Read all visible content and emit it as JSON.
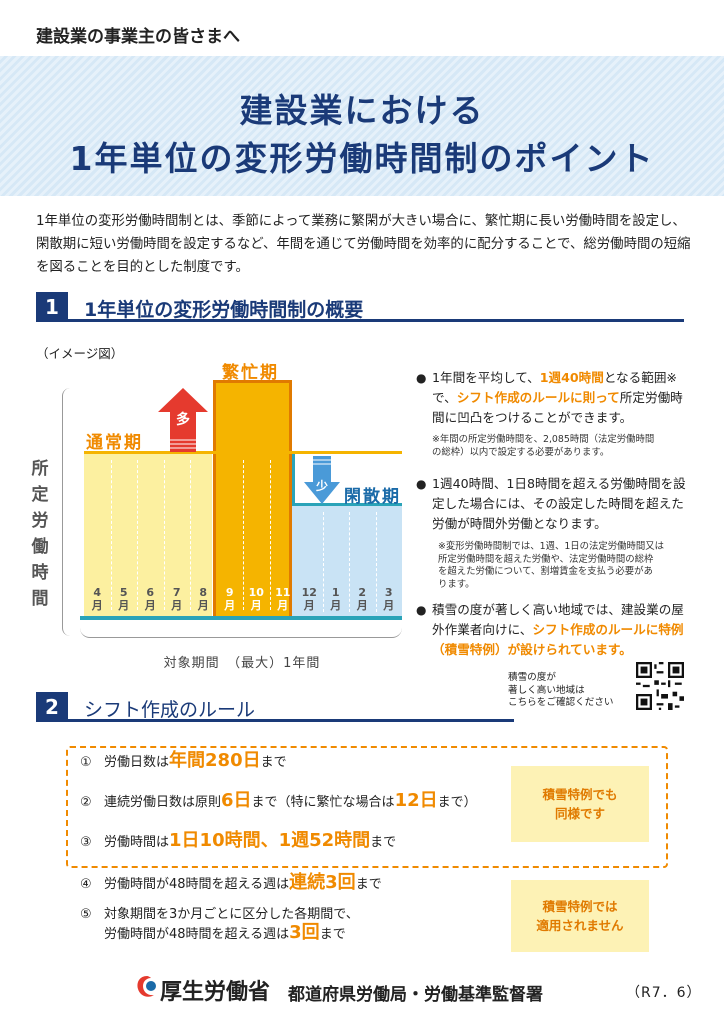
{
  "header": {
    "audience": "建設業の事業主の皆さまへ",
    "title_line1": "建設業における",
    "title_line2": "1年単位の変形労働時間制のポイント"
  },
  "intro": "1年単位の変形労働時間制とは、季節によって業務に繁閑が大きい場合に、繁忙期に長い労働時間を設定し、閑散期に短い労働時間を設定するなど、年間を通じて労働時間を効率的に配分することで、総労働時間の短縮を図ることを目的とした制度です。",
  "section1": {
    "number": "1",
    "title": "1年単位の変形労働時間制の概要",
    "image_label": "（イメージ図）",
    "chart": {
      "y_axis_label": "所定労働時間",
      "normal_label": "通常期",
      "busy_label": "繁忙期",
      "idle_label": "閑散期",
      "more_label": "多",
      "less_label": "少",
      "months": [
        "4",
        "5",
        "6",
        "7",
        "8",
        "9",
        "10",
        "11",
        "12",
        "1",
        "2",
        "3"
      ],
      "month_unit": "月",
      "period_label": "対象期間　（最大）1年間"
    },
    "bullets": [
      {
        "pre": "1年間を平均して、",
        "h1": "1週40時間",
        "mid": "となる範囲※で、",
        "h2": "シフト作成のルールに則って",
        "post": "所定労働時間に凹凸をつけることができます。",
        "note_line1": "※年間の所定労働時間を、2,085時間（法定労働時間",
        "note_line2": "の総枠）以内で設定する必要があります。"
      },
      {
        "text": "1週40時間、1日8時間を超える労働時間を設定した場合には、その設定した時間を超えた労働が時間外労働となります。",
        "note_line1": "※変形労働時間制では、1週、1日の法定労働時間又は",
        "note_line2": "所定労働時間を超えた労働や、法定労働時間の総枠",
        "note_line3": "を超えた労働について、割増賃金を支払う必要があ",
        "note_line4": "ります。"
      },
      {
        "pre": "積雪の度が著しく高い地域では、建設業の屋外作業者向けに、",
        "highlight": "シフト作成のルールに特例（積雪特例）が設けられています。"
      }
    ],
    "qr_note_line1": "積雪の度が",
    "qr_note_line2": "著しく高い地域は",
    "qr_note_line3": "こちらをご確認ください"
  },
  "section2": {
    "number": "2",
    "title": "シフト作成のルール",
    "rules": [
      {
        "num": "①",
        "pre": "労働日数は",
        "big": "年間280日",
        "post": "まで"
      },
      {
        "num": "②",
        "pre": "連続労働日数は原則",
        "big": "6日",
        "mid": "まで（特に繁忙な場合は",
        "big2": "12日",
        "post": "まで）"
      },
      {
        "num": "③",
        "pre": "労働時間は",
        "big": "1日10時間、1週52時間",
        "post": "まで"
      },
      {
        "num": "④",
        "pre": "労働時間が48時間を超える週は",
        "big": "連続3回",
        "post": "まで"
      },
      {
        "num": "⑤",
        "pre": "対象期間を3か月ごとに区分した各期間で、",
        "pre2": "労働時間が48時間を超える週は",
        "big": "3回",
        "post": "まで"
      }
    ],
    "note_same_line1": "積雪特例でも",
    "note_same_line2": "同様です",
    "note_na_line1": "積雪特例では",
    "note_na_line2": "適用されません"
  },
  "footer": {
    "ministry": "厚生労働省",
    "bureau": "都道府県労働局・労働基準監督署",
    "version": "（R7．6）"
  },
  "colors": {
    "navy": "#1a3a78",
    "orange": "#f08a00",
    "busy": "#f5b400",
    "teal": "#2aa3b8"
  }
}
